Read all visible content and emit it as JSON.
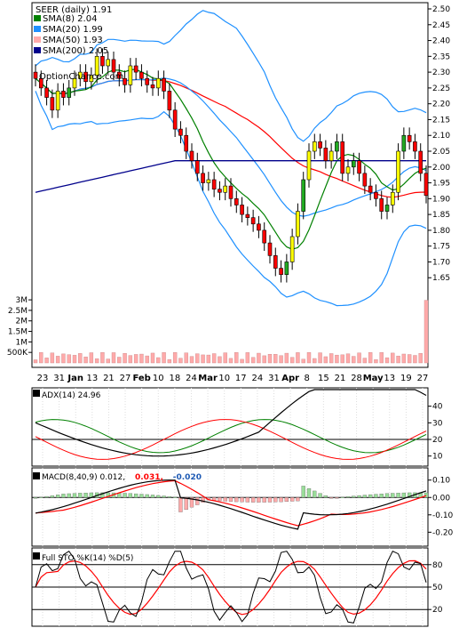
{
  "title": "SEER (daily) 1.91",
  "watermark": "OptionChance.com",
  "colors": {
    "up": "#ffff00",
    "down": "#ff0000",
    "up_alt": "#22aa22",
    "down_alt": "#ffaaaa",
    "sma8": "#008000",
    "sma20": "#1e90ff",
    "sma50": "#ff0000",
    "sma200": "#00008b",
    "bb": "#1e90ff",
    "adx": "#000000",
    "pdi": "#008000",
    "mdi": "#ff0000",
    "macd": "#000000",
    "signal": "#ff0000",
    "stoK": "#000000",
    "stoD": "#ff0000"
  },
  "legend": [
    {
      "label": "SMA(8) 2.04",
      "color": "#008000"
    },
    {
      "label": "SMA(20) 1.99",
      "color": "#1e90ff"
    },
    {
      "label": "SMA(50) 1.93",
      "color": "#ffaaaa"
    },
    {
      "label": "SMA(200) 2.05",
      "color": "#00008b"
    }
  ],
  "x_labels": [
    "23",
    "31",
    "Jan",
    "13",
    "21",
    "27",
    "Feb",
    "10",
    "18",
    "24",
    "Mar",
    "10",
    "17",
    "24",
    "31",
    "Apr",
    "8",
    "15",
    "21",
    "28",
    "May",
    "13",
    "19",
    "27"
  ],
  "chart_data": [
    {
      "type": "candlestick",
      "title": "SEER (daily) 1.91",
      "ylim": [
        1.6,
        2.5
      ],
      "y_ticks": [
        "1.65",
        "1.70",
        "1.75",
        "1.80",
        "1.85",
        "1.90",
        "1.95",
        "2.00",
        "2.05",
        "2.10",
        "2.15",
        "2.20",
        "2.25",
        "2.30",
        "2.35",
        "2.40",
        "2.45",
        "2.50"
      ],
      "close": [
        2.28,
        2.25,
        2.22,
        2.18,
        2.24,
        2.22,
        2.25,
        2.28,
        2.3,
        2.27,
        2.29,
        2.35,
        2.32,
        2.34,
        2.3,
        2.28,
        2.26,
        2.32,
        2.3,
        2.28,
        2.26,
        2.25,
        2.28,
        2.24,
        2.18,
        2.12,
        2.1,
        2.05,
        2.02,
        1.98,
        1.95,
        1.96,
        1.93,
        1.92,
        1.94,
        1.9,
        1.88,
        1.85,
        1.84,
        1.82,
        1.8,
        1.76,
        1.72,
        1.68,
        1.66,
        1.7,
        1.78,
        1.86,
        1.96,
        2.05,
        2.08,
        2.06,
        2.02,
        2.05,
        2.08,
        1.98,
        2.0,
        2.02,
        1.98,
        1.94,
        1.92,
        1.9,
        1.86,
        1.88,
        1.92,
        2.05,
        2.1,
        2.08,
        2.05,
        1.98,
        1.91
      ],
      "sma8_last": 2.04,
      "sma20_last": 1.99,
      "sma50_last": 1.93,
      "sma200_last": 2.05
    },
    {
      "type": "bar",
      "title": "Volume",
      "y_ticks": [
        "500K",
        "1M",
        "1.5M",
        "2M",
        "2.5M",
        "3M"
      ],
      "ylim": [
        0,
        3300000
      ]
    },
    {
      "type": "line",
      "title": "ADX(14) 24.96",
      "ylim": [
        5,
        50
      ],
      "y_ticks": [
        "10",
        "20",
        "30",
        "40"
      ],
      "adx_last": 24.96
    },
    {
      "type": "line",
      "title": "MACD(8,40,9) 0.012, 0.031, -0.020",
      "legend": [
        {
          "label": "MACD(8,40,9) 0.012,",
          "color": "#000000"
        },
        {
          "label": "0.031,",
          "color": "#ff0000"
        },
        {
          "label": "-0.020",
          "color": "#1e5ab4"
        }
      ],
      "ylim": [
        -0.27,
        0.16
      ],
      "y_ticks": [
        "-0.20",
        "-0.10",
        "0.00",
        "0.10"
      ]
    },
    {
      "type": "line",
      "title": "Full STO %K(14) %D(5)",
      "ylim": [
        0,
        100
      ],
      "y_ticks": [
        "20",
        "50",
        "80"
      ]
    }
  ],
  "labels": {
    "adx": "ADX(14) 24.96",
    "macd_a": "MACD(8,40,9) 0.012,",
    "macd_b": "0.031,",
    "macd_c": "-0.020",
    "sto": "Full STO %K(14) %D(5)"
  }
}
